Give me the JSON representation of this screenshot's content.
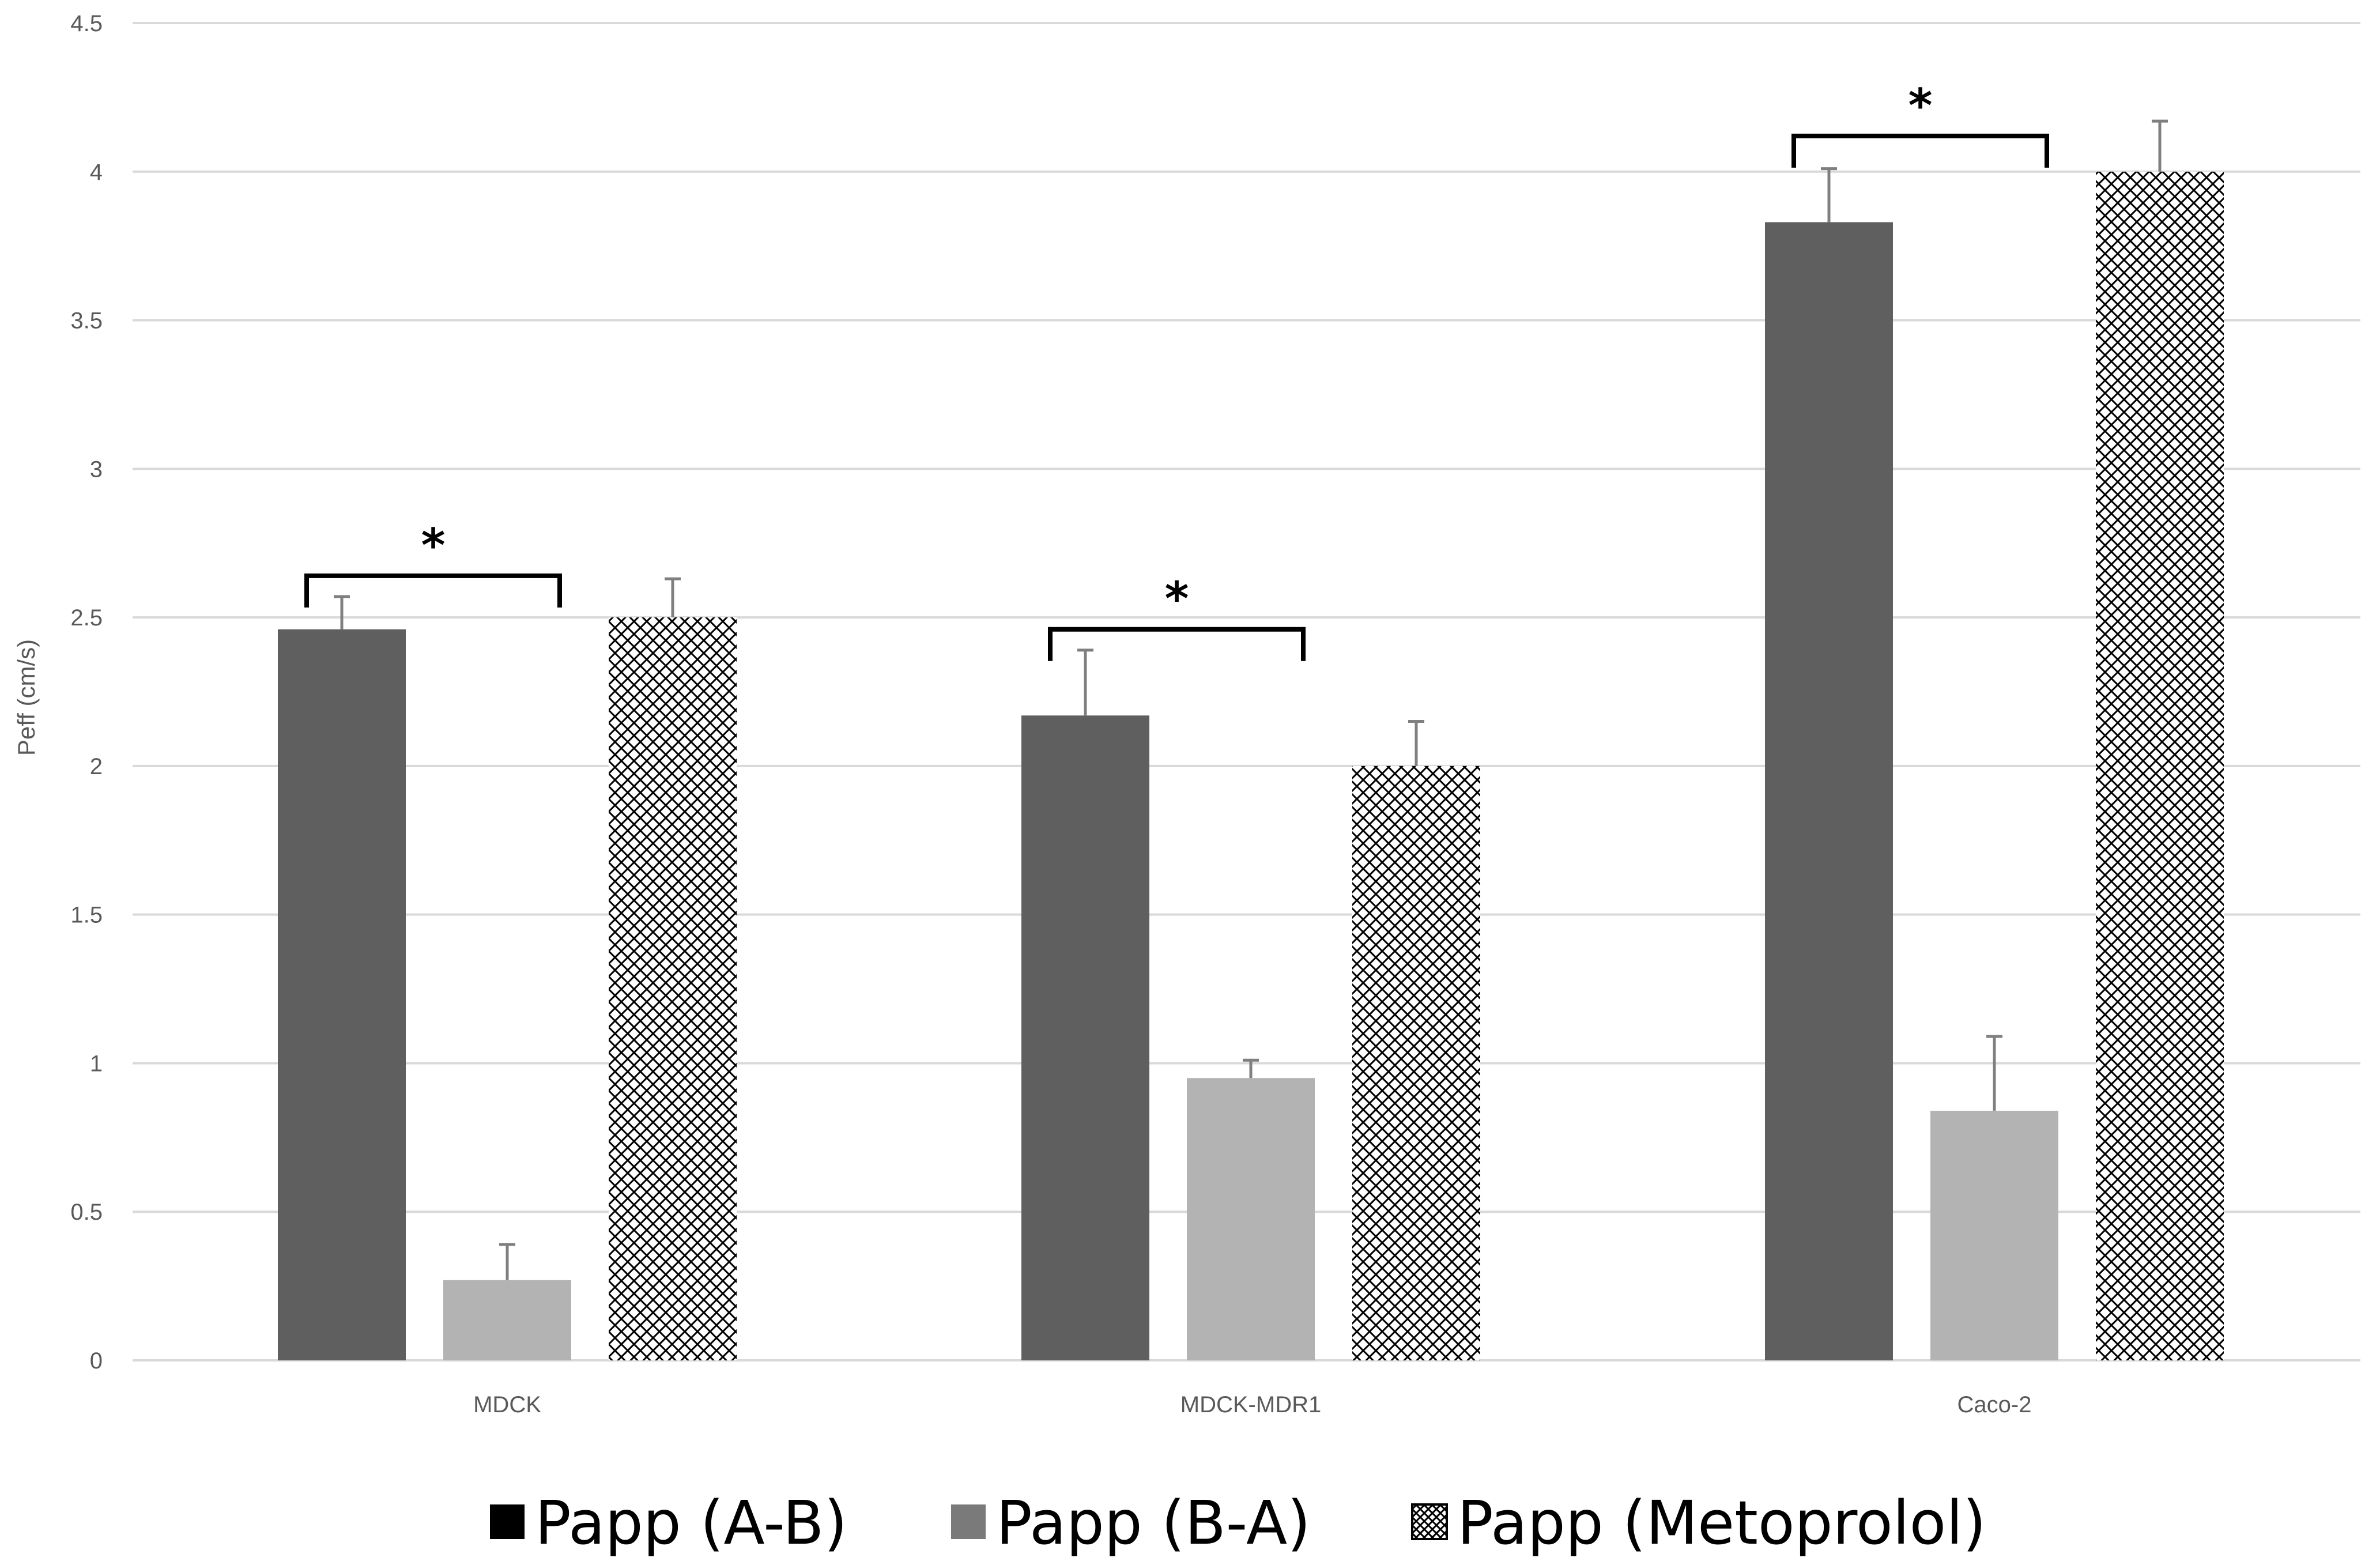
{
  "chart_data": {
    "type": "bar",
    "title": "",
    "xlabel": "",
    "ylabel": "Peff (cm/s)",
    "ylim": [
      0,
      4.5
    ],
    "yticks": [
      0,
      0.5,
      1,
      1.5,
      2,
      2.5,
      3,
      3.5,
      4,
      4.5
    ],
    "ytick_labels": [
      "0",
      "0.5",
      "1",
      "1.5",
      "2",
      "2.5",
      "3",
      "3.5",
      "4",
      "4.5"
    ],
    "grid": true,
    "legend_position": "bottom",
    "categories": [
      "MDCK",
      "MDCK-MDR1",
      "Caco-2"
    ],
    "series": [
      {
        "name": "Papp (A-B)",
        "values": [
          2.46,
          2.17,
          3.83
        ],
        "errors": [
          0.11,
          0.22,
          0.18
        ],
        "color": "#5f5f5f",
        "pattern": "solid"
      },
      {
        "name": "Papp (B-A)",
        "values": [
          0.27,
          0.95,
          0.84
        ],
        "errors": [
          0.12,
          0.06,
          0.25
        ],
        "color": "#b3b3b3",
        "pattern": "solid"
      },
      {
        "name": "Papp (Metoprolol)",
        "values": [
          2.5,
          2.0,
          4.0
        ],
        "errors": [
          0.13,
          0.15,
          0.17
        ],
        "color": "#000000",
        "pattern": "crosshatch"
      }
    ],
    "significance": [
      {
        "category": "MDCK",
        "label": "*",
        "bracket_level": 2.64
      },
      {
        "category": "MDCK-MDR1",
        "label": "*",
        "bracket_level": 2.46
      },
      {
        "category": "Caco-2",
        "label": "*",
        "bracket_level": 4.12
      }
    ]
  }
}
